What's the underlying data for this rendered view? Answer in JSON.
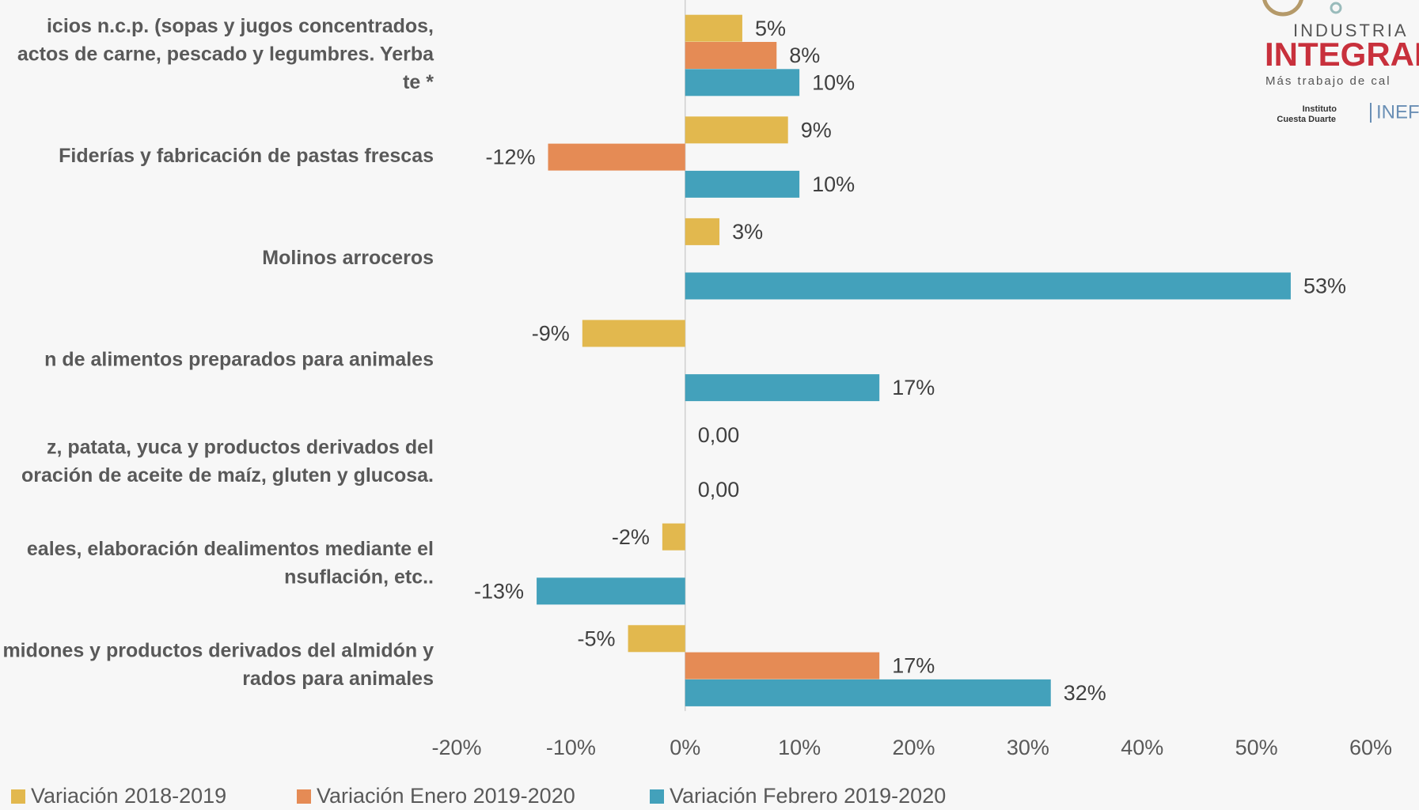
{
  "chart_data": {
    "type": "barh",
    "categories": [
      [
        "icios n.c.p. (sopas y jugos concentrados,",
        "actos de carne, pescado y legumbres. Yerba",
        "te *"
      ],
      [
        "Fiderías y fabricación de pastas frescas"
      ],
      [
        "Molinos arroceros"
      ],
      [
        "n  de  alimentos  preparados  para  animales"
      ],
      [
        "z,  patata,  yuca  y  productos  derivados  del",
        "oración de aceite de maíz, gluten y glucosa."
      ],
      [
        "eales,  elaboración  dealimentos  mediante  el",
        "nsuflación, etc.."
      ],
      [
        "midones y productos derivados del almidón y",
        "rados para animales"
      ]
    ],
    "series": [
      {
        "name": "Variación 2018-2019",
        "color": "#e2b84e",
        "values": [
          5,
          9,
          3,
          -9,
          0,
          -2,
          -5
        ],
        "value_labels": [
          "5%",
          "9%",
          "3%",
          "-9%",
          "0,00",
          "-2%",
          "-5%"
        ]
      },
      {
        "name": "Variación Enero 2019-2020",
        "color": "#e58b55",
        "values": [
          8,
          -12,
          null,
          null,
          null,
          null,
          17
        ],
        "value_labels": [
          "8%",
          "-12%",
          null,
          null,
          null,
          null,
          "17%"
        ]
      },
      {
        "name": "Variación Febrero 2019-2020",
        "color": "#43a1bb",
        "values": [
          10,
          10,
          53,
          17,
          0,
          -13,
          32
        ],
        "value_labels": [
          "10%",
          "10%",
          "53%",
          "17%",
          "0,00",
          "-13%",
          "32%"
        ]
      }
    ],
    "xlim": [
      -20,
      60
    ],
    "xticks": [
      {
        "value": -20,
        "label": "-20%"
      },
      {
        "value": -10,
        "label": "-10%"
      },
      {
        "value": 0,
        "label": "0%"
      },
      {
        "value": 10,
        "label": "10%"
      },
      {
        "value": 20,
        "label": "20%"
      },
      {
        "value": 30,
        "label": "30%"
      },
      {
        "value": 40,
        "label": "40%"
      },
      {
        "value": 50,
        "label": "50%"
      },
      {
        "value": 60,
        "label": "60%"
      }
    ],
    "grid": false,
    "legend": "bottom"
  },
  "logo": {
    "line1": "INDUSTRIA",
    "line2": "INTEGRAD",
    "line3": "Más trabajo de cal",
    "inst1": "Instituto",
    "inst2": "Cuesta Duarte",
    "inefo": "INEFO"
  }
}
